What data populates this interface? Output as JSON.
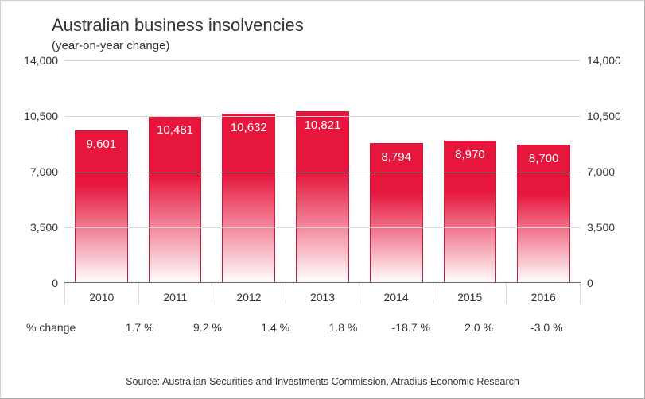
{
  "title": "Australian business insolvencies",
  "subtitle": "(year-on-year change)",
  "chart": {
    "type": "bar",
    "categories": [
      "2010",
      "2011",
      "2012",
      "2013",
      "2014",
      "2015",
      "2016"
    ],
    "values": [
      9601,
      10481,
      10632,
      10821,
      8794,
      8970,
      8700
    ],
    "value_labels": [
      "9,601",
      "10,481",
      "10,632",
      "10,821",
      "8,794",
      "8,970",
      "8,700"
    ],
    "pct_change_labels": [
      "1.7 %",
      "9.2 %",
      "1.4 %",
      "1.8 %",
      "-18.7 %",
      "2.0 %",
      "-3.0 %"
    ],
    "ylim": [
      0,
      14000
    ],
    "yticks": [
      0,
      3500,
      7000,
      10500,
      14000
    ],
    "ytick_labels": [
      "0",
      "3,500",
      "7,000",
      "10,500",
      "14,000"
    ],
    "bar_gradient_top": "#e6163d",
    "bar_gradient_bottom": "#ffffff",
    "bar_border": "#c02040",
    "bar_label_color": "#ffffff",
    "grid_color": "#d8d8d8",
    "baseline_color": "#666666",
    "text_color": "#333333",
    "background_color": "#ffffff",
    "bar_width": 0.72,
    "title_fontsize": 22,
    "subtitle_fontsize": 15,
    "axis_fontsize": 14,
    "source_fontsize": 12.5
  },
  "pct_row_label": "% change",
  "source": "Source: Australian Securities and Investments Commission, Atradius Economic Research"
}
